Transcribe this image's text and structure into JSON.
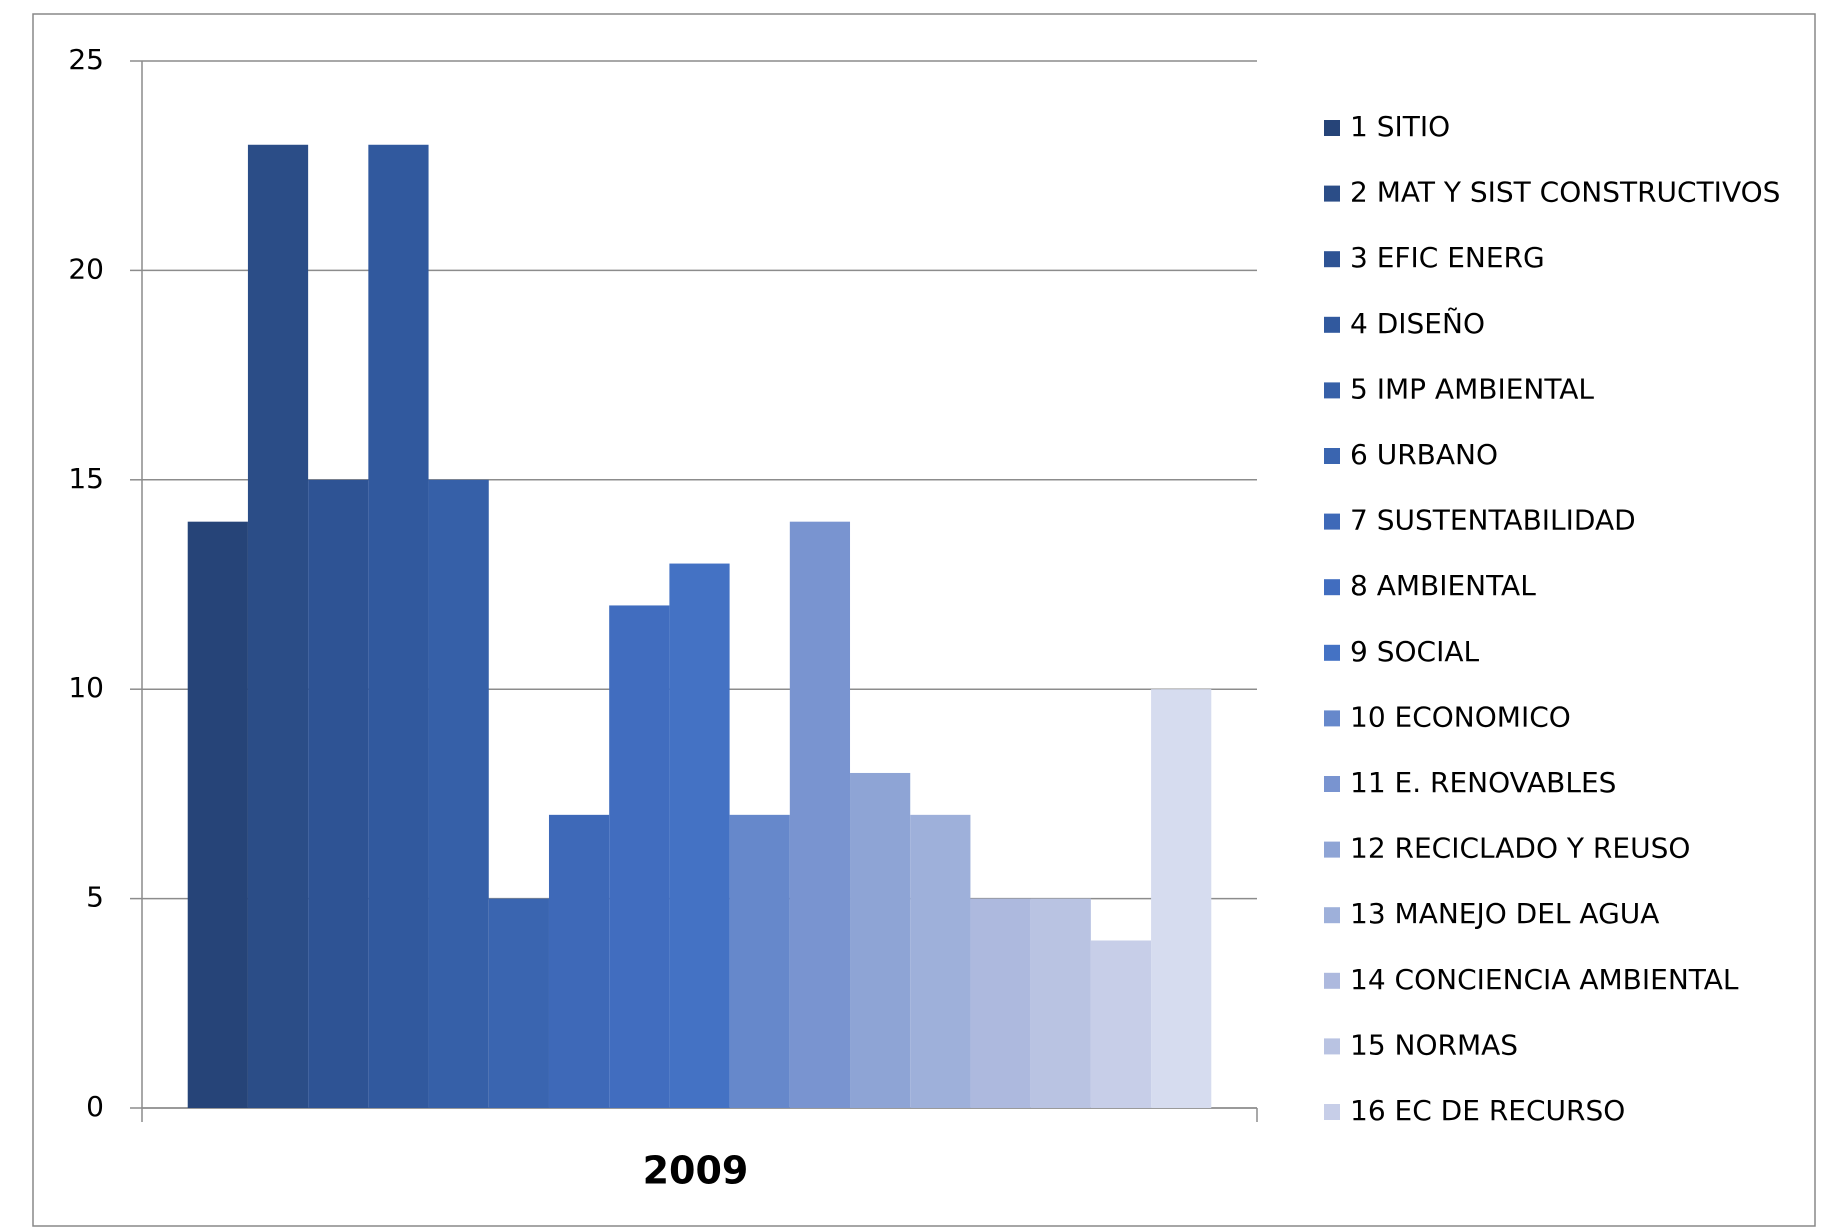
{
  "chart_data": {
    "type": "bar",
    "categories": [
      "2009"
    ],
    "series": [
      {
        "name": "1 SITIO",
        "color": "#264478",
        "values": [
          14
        ]
      },
      {
        "name": "2 MAT Y SIST CONSTRUCTIVOS",
        "color": "#2b4d87",
        "values": [
          23
        ]
      },
      {
        "name": "3 EFIC  ENERG",
        "color": "#2e5394",
        "values": [
          15
        ]
      },
      {
        "name": "4 DISEÑO",
        "color": "#31599e",
        "values": [
          23
        ]
      },
      {
        "name": "5 IMP AMBIENTAL",
        "color": "#3660a8",
        "values": [
          15
        ]
      },
      {
        "name": "6 URBANO",
        "color": "#3a65b0",
        "values": [
          5
        ]
      },
      {
        "name": "7 SUSTENTABILIDAD",
        "color": "#3e69b8",
        "values": [
          7
        ]
      },
      {
        "name": "8 AMBIENTAL",
        "color": "#416dbf",
        "values": [
          12
        ]
      },
      {
        "name": "9 SOCIAL",
        "color": "#4472c4",
        "values": [
          13
        ]
      },
      {
        "name": "10 ECONOMICO",
        "color": "#6688cb",
        "values": [
          7
        ]
      },
      {
        "name": "11 E. RENOVABLES",
        "color": "#7994d0",
        "values": [
          14
        ]
      },
      {
        "name": "12 RECICLADO Y REUSO",
        "color": "#8ea4d5",
        "values": [
          8
        ]
      },
      {
        "name": "13 MANEJO DEL AGUA",
        "color": "#9eb0da",
        "values": [
          7
        ]
      },
      {
        "name": "14 CONCIENCIA AMBIENTAL",
        "color": "#adb9de",
        "values": [
          5
        ]
      },
      {
        "name": "15 NORMAS",
        "color": "#b9c3e2",
        "values": [
          5
        ]
      },
      {
        "name": "16 EC DE RECURSO",
        "color": "#c7cee8",
        "values": [
          4
        ]
      },
      {
        "name": null,
        "color": "#d6dcef",
        "values": [
          10
        ]
      }
    ],
    "ylim": [
      0,
      25
    ],
    "yticks": [
      0,
      5,
      10,
      15,
      20,
      25
    ],
    "grid": true,
    "legend": "right"
  }
}
